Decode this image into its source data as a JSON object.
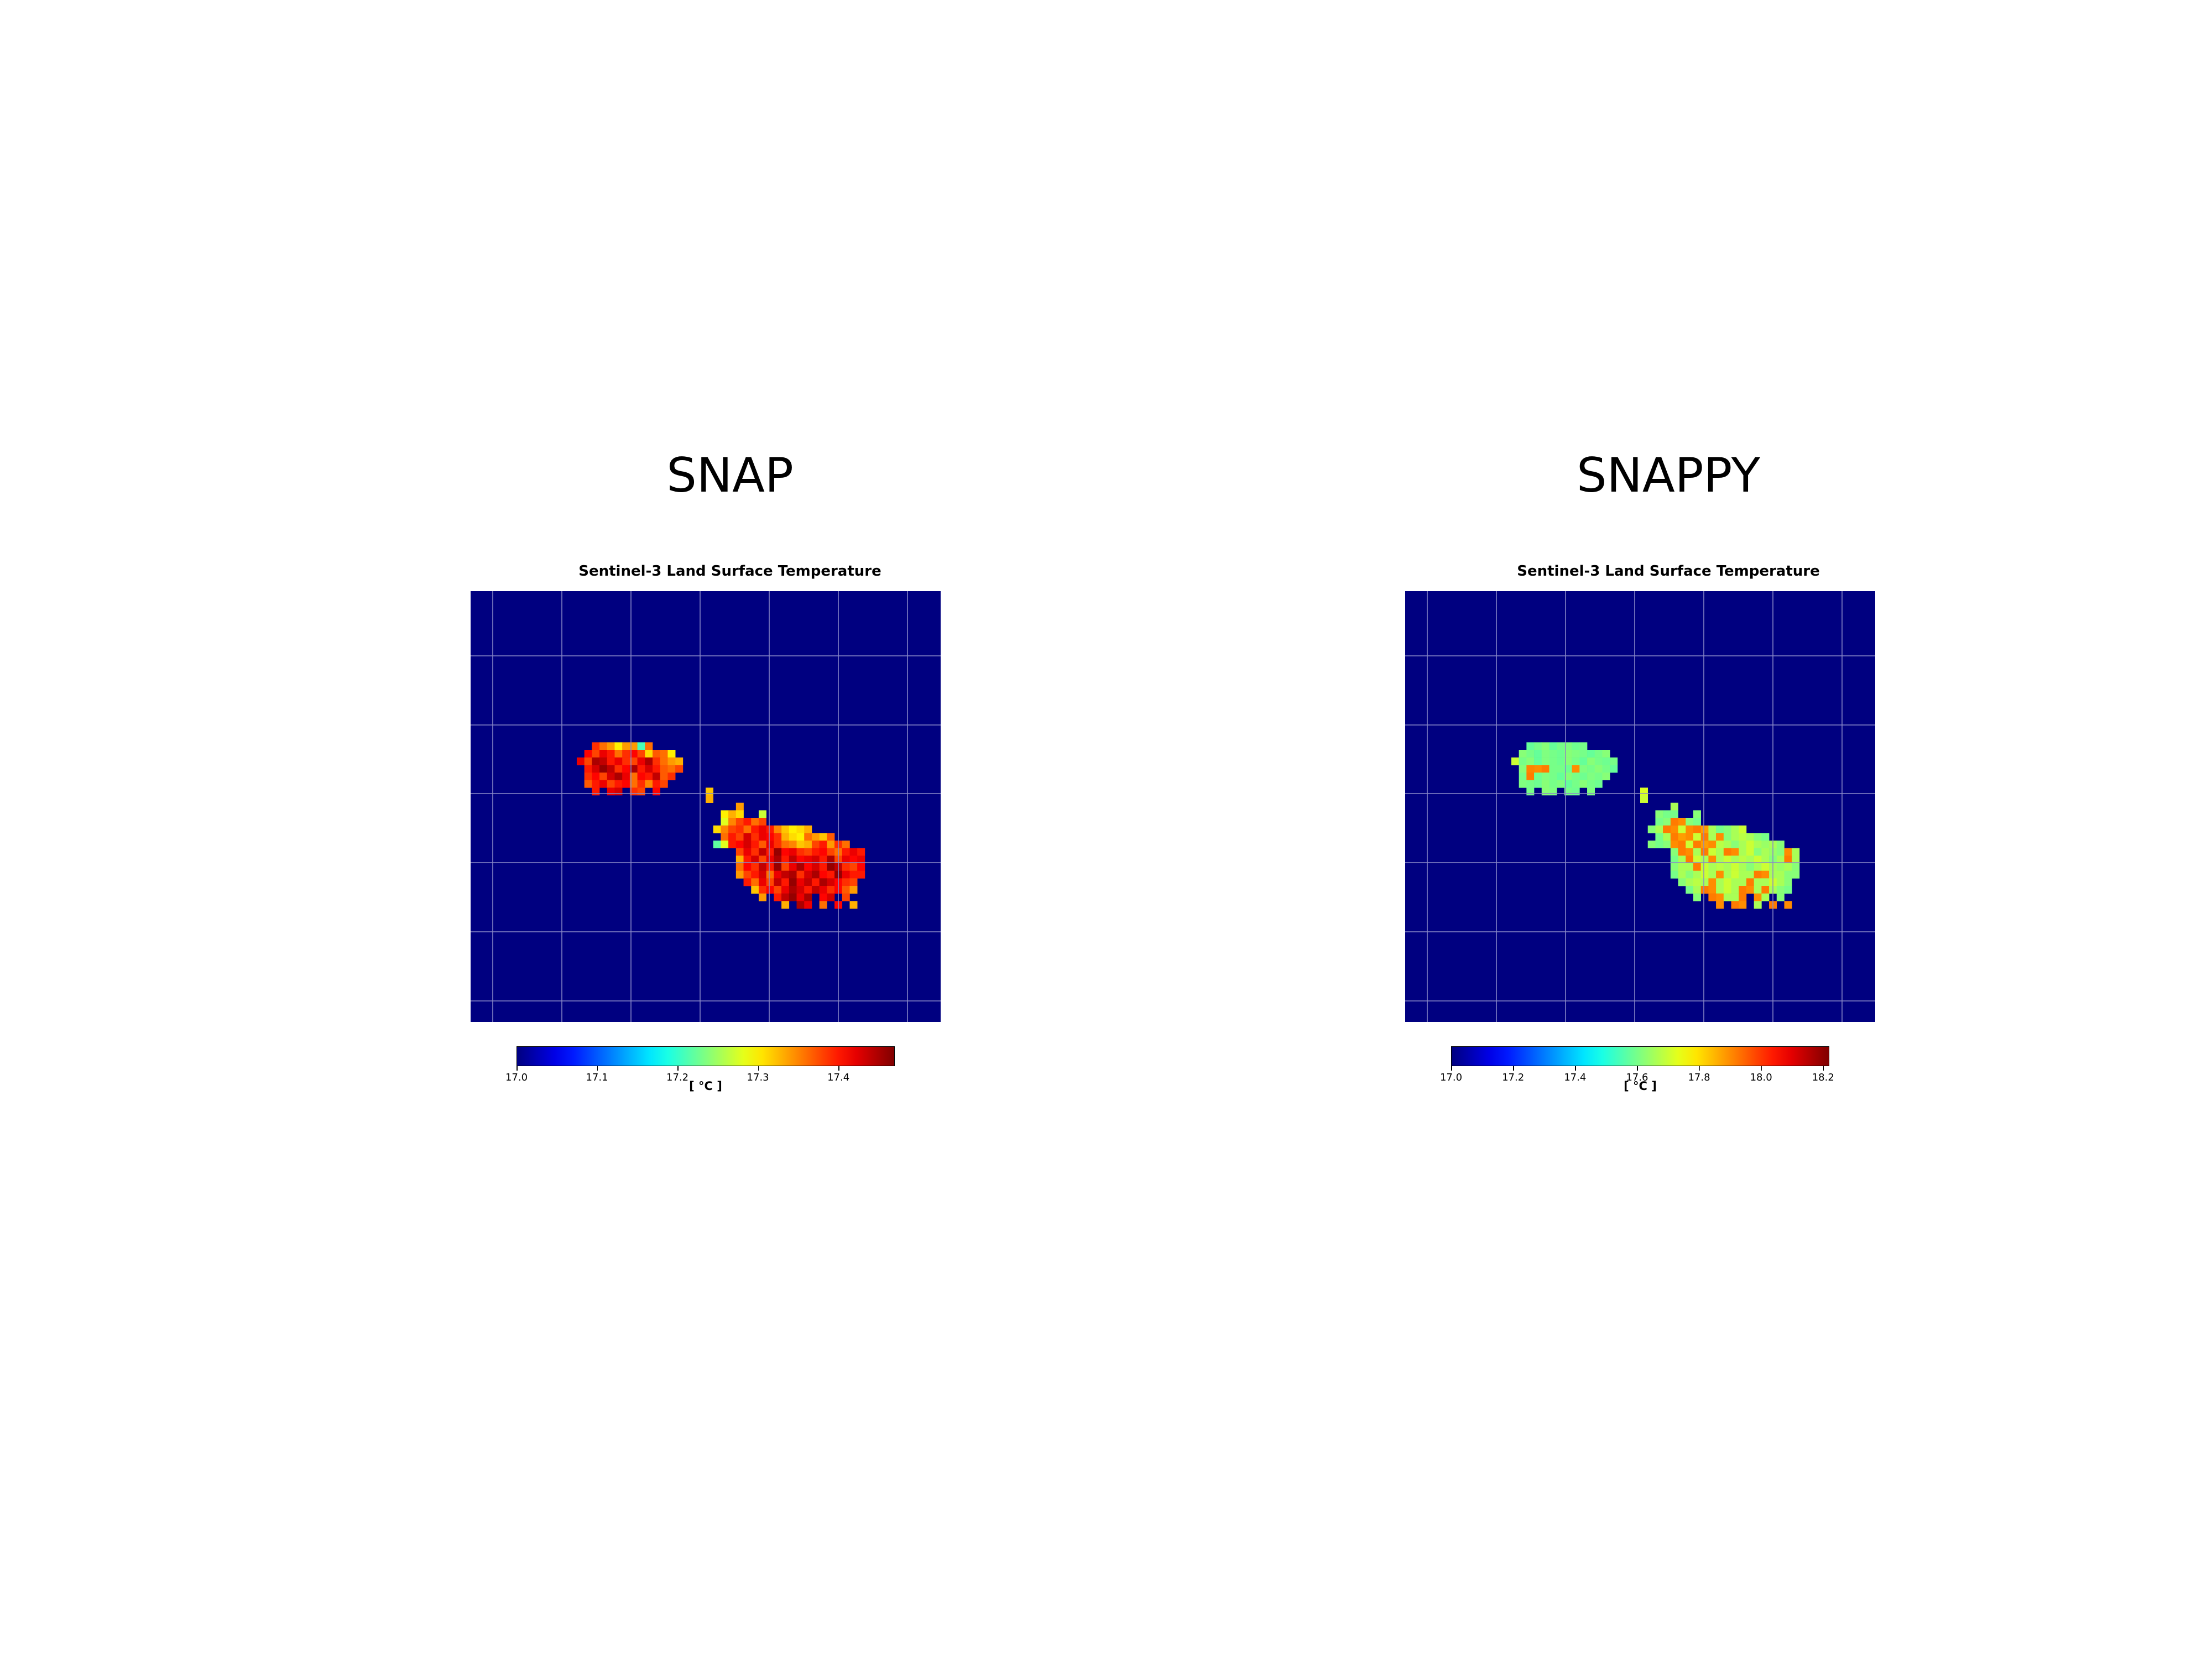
{
  "colors": {
    "ocean": "#000080",
    "grid": "#8a8ac8",
    "colormap": "jet"
  },
  "panels": [
    {
      "heading": "SNAP"
    },
    {
      "heading": "SNAPPY"
    }
  ],
  "chart_data": [
    {
      "type": "heatmap",
      "title": "Sentinel-3 Land Surface Temperature",
      "grid": true,
      "vmin": 17.0,
      "vmax": 17.47,
      "colorbar": {
        "ticks": [
          17.0,
          17.1,
          17.2,
          17.3,
          17.4
        ],
        "tick_labels": [
          "17.0",
          "17.1",
          "17.2",
          "17.3",
          "17.4"
        ],
        "label": "[ °C ]",
        "orientation": "horizontal"
      },
      "values_by_row": [
        {
          "row": 20,
          "col_start": 16,
          "values": [
            17.39,
            17.36,
            17.34,
            17.3,
            17.34,
            17.34,
            17.21,
            17.36
          ]
        },
        {
          "row": 21,
          "col_start": 15,
          "values": [
            17.41,
            17.38,
            17.42,
            17.4,
            17.36,
            17.39,
            17.41,
            17.38,
            17.31,
            17.37,
            17.36,
            17.3
          ]
        },
        {
          "row": 22,
          "col_start": 14,
          "values": [
            17.42,
            17.38,
            17.45,
            17.44,
            17.4,
            17.42,
            17.39,
            17.38,
            17.42,
            17.45,
            17.39,
            17.36,
            17.34,
            17.33
          ]
        },
        {
          "row": 23,
          "col_start": 15,
          "values": [
            17.4,
            17.43,
            17.46,
            17.44,
            17.39,
            17.41,
            17.45,
            17.4,
            17.43,
            17.4,
            17.37,
            17.36,
            17.38
          ]
        },
        {
          "row": 24,
          "col_start": 15,
          "values": [
            17.39,
            17.41,
            17.38,
            17.43,
            17.45,
            17.42,
            17.36,
            17.41,
            17.4,
            17.44,
            17.37,
            17.39
          ]
        },
        {
          "row": 25,
          "col_start": 15,
          "values": [
            17.37,
            17.4,
            17.42,
            17.38,
            17.4,
            17.41,
            17.36,
            17.39,
            17.35,
            17.4,
            17.38
          ]
        },
        {
          "row": 26,
          "col_start": 16,
          "values": [
            17.4,
            null,
            17.42,
            17.43,
            null,
            17.39,
            17.38,
            null,
            17.41
          ],
          "extra": [
            {
              "col": 31,
              "value": 17.32
            }
          ]
        },
        {
          "row": 27,
          "col_start": 31,
          "values": [
            17.33
          ]
        },
        {
          "row": 28,
          "col_start": 35,
          "values": [
            17.34
          ]
        },
        {
          "row": 29,
          "col_start": 33,
          "values": [
            17.3,
            17.33,
            17.31
          ],
          "extra": [
            {
              "col": 38,
              "value": 17.27
            }
          ]
        },
        {
          "row": 30,
          "col_start": 33,
          "values": [
            17.28,
            17.35,
            17.38,
            17.4,
            17.36,
            17.38
          ]
        },
        {
          "row": 31,
          "col_start": 32,
          "values": [
            17.31,
            17.35,
            17.38,
            17.39,
            17.36,
            17.4,
            17.42,
            17.4,
            17.35,
            17.32,
            17.3,
            17.31,
            17.33
          ]
        },
        {
          "row": 32,
          "col_start": 33,
          "values": [
            17.36,
            17.4,
            17.38,
            17.43,
            17.39,
            17.42,
            17.41,
            17.39,
            17.33,
            17.31,
            17.3,
            17.36,
            17.34,
            17.32,
            17.37
          ]
        },
        {
          "row": 33,
          "col_start": 32,
          "values": [
            17.22,
            17.28,
            17.4,
            17.41,
            17.43,
            17.4,
            17.37,
            17.42,
            17.39,
            17.36,
            17.35,
            17.32,
            17.33,
            17.38,
            17.4,
            17.34,
            17.39,
            17.36
          ]
        },
        {
          "row": 34,
          "col_start": 35,
          "values": [
            17.38,
            17.42,
            17.39,
            17.44,
            17.4,
            17.46,
            17.41,
            17.42,
            17.39,
            17.38,
            17.4,
            17.41,
            17.38,
            17.36,
            17.4,
            17.42,
            17.4
          ]
        },
        {
          "row": 35,
          "col_start": 35,
          "values": [
            17.33,
            17.4,
            17.43,
            17.38,
            17.42,
            17.45,
            17.4,
            17.44,
            17.41,
            17.42,
            17.43,
            17.4,
            17.45,
            17.38,
            17.42,
            17.41,
            17.42
          ]
        },
        {
          "row": 36,
          "col_start": 35,
          "values": [
            17.36,
            17.41,
            17.39,
            17.44,
            17.4,
            17.46,
            17.38,
            17.42,
            17.45,
            17.41,
            17.43,
            17.4,
            17.46,
            17.44,
            17.39,
            17.38,
            17.41
          ]
        },
        {
          "row": 37,
          "col_start": 35,
          "values": [
            17.34,
            17.38,
            17.4,
            17.43,
            17.36,
            17.42,
            17.44,
            17.45,
            17.39,
            17.43,
            17.45,
            17.41,
            17.4,
            17.46,
            17.42,
            17.4,
            17.4
          ]
        },
        {
          "row": 38,
          "col_start": 36,
          "values": [
            17.4,
            17.36,
            17.42,
            17.38,
            17.44,
            17.4,
            17.46,
            17.42,
            17.44,
            17.4,
            17.45,
            17.43,
            17.41,
            17.39,
            17.38
          ]
        },
        {
          "row": 39,
          "col_start": 37,
          "values": [
            17.32,
            17.39,
            17.41,
            17.38,
            17.42,
            17.45,
            17.43,
            17.4,
            17.44,
            17.42,
            17.39,
            17.41,
            17.37,
            17.34
          ]
        },
        {
          "row": 40,
          "col_start": 38,
          "values": [
            17.34,
            null,
            17.4,
            17.44,
            17.46,
            17.42,
            17.45,
            null,
            17.41,
            17.43,
            null,
            17.38
          ]
        },
        {
          "row": 41,
          "col_start": 41,
          "values": [
            17.33,
            null,
            17.45,
            17.42,
            null,
            17.36,
            null,
            17.41,
            null,
            17.33
          ]
        }
      ],
      "grid_dims": {
        "cols": 62,
        "rows": 57
      }
    },
    {
      "type": "heatmap",
      "title": "Sentinel-3 Land Surface Temperature",
      "grid": true,
      "vmin": 17.0,
      "vmax": 18.22,
      "colorbar": {
        "ticks": [
          17.0,
          17.2,
          17.4,
          17.6,
          17.8,
          18.0,
          18.2
        ],
        "tick_labels": [
          "17.0",
          "17.2",
          "17.4",
          "17.6",
          "17.8",
          "18.0",
          "18.2"
        ],
        "label": "[ °C ]",
        "orientation": "horizontal"
      },
      "values_by_row": [
        {
          "row": 20,
          "col_start": 16,
          "values": [
            17.58,
            17.6,
            17.62,
            17.58,
            17.6,
            17.61,
            17.59,
            17.6
          ]
        },
        {
          "row": 21,
          "col_start": 15,
          "values": [
            17.62,
            17.6,
            17.58,
            17.61,
            17.6,
            17.59,
            17.62,
            17.61,
            17.6,
            17.58,
            17.6,
            17.62
          ]
        },
        {
          "row": 22,
          "col_start": 14,
          "values": [
            17.7,
            17.6,
            17.62,
            17.58,
            17.61,
            17.6,
            17.59,
            17.62,
            17.6,
            17.58,
            17.62,
            17.6,
            17.59,
            17.6
          ]
        },
        {
          "row": 23,
          "col_start": 15,
          "values": [
            17.62,
            17.91,
            17.9,
            17.92,
            17.6,
            17.6,
            17.59,
            17.9,
            17.61,
            17.6,
            17.62,
            17.6,
            17.58
          ]
        },
        {
          "row": 24,
          "col_start": 15,
          "values": [
            17.6,
            17.92,
            17.59,
            17.61,
            17.6,
            17.58,
            17.62,
            17.6,
            17.59,
            17.61,
            17.6,
            17.62
          ]
        },
        {
          "row": 25,
          "col_start": 15,
          "values": [
            17.61,
            17.6,
            17.59,
            17.62,
            17.6,
            17.61,
            17.58,
            17.6,
            17.62,
            17.6,
            17.59
          ]
        },
        {
          "row": 26,
          "col_start": 16,
          "values": [
            17.6,
            null,
            17.62,
            17.61,
            null,
            17.6,
            17.59,
            null,
            17.61
          ],
          "extra": [
            {
              "col": 31,
              "value": 17.72
            }
          ]
        },
        {
          "row": 27,
          "col_start": 31,
          "values": [
            17.7
          ]
        },
        {
          "row": 28,
          "col_start": 35,
          "values": [
            17.66
          ]
        },
        {
          "row": 29,
          "col_start": 33,
          "values": [
            17.62,
            17.6,
            17.6
          ],
          "extra": [
            {
              "col": 38,
              "value": 17.62
            }
          ]
        },
        {
          "row": 30,
          "col_start": 33,
          "values": [
            17.6,
            17.62,
            17.92,
            17.9,
            17.62,
            17.6
          ]
        },
        {
          "row": 31,
          "col_start": 32,
          "values": [
            17.62,
            17.66,
            17.92,
            17.9,
            17.7,
            17.9,
            17.92,
            17.88,
            17.66,
            17.6,
            17.62,
            17.66,
            17.7
          ]
        },
        {
          "row": 32,
          "col_start": 33,
          "values": [
            17.6,
            17.66,
            17.92,
            17.88,
            17.9,
            17.7,
            17.92,
            17.66,
            17.9,
            17.62,
            17.66,
            17.68,
            17.66,
            17.62,
            17.6
          ]
        },
        {
          "row": 33,
          "col_start": 32,
          "values": [
            17.62,
            17.6,
            17.62,
            17.9,
            17.92,
            17.7,
            17.92,
            17.88,
            17.9,
            17.68,
            17.66,
            17.62,
            17.66,
            17.7,
            17.66,
            17.64,
            17.66,
            17.62
          ]
        },
        {
          "row": 34,
          "col_start": 35,
          "values": [
            17.62,
            17.92,
            17.9,
            17.66,
            17.92,
            17.7,
            17.66,
            17.92,
            17.9,
            17.66,
            17.7,
            17.62,
            17.66,
            17.64,
            17.62,
            17.9,
            17.66
          ]
        },
        {
          "row": 35,
          "col_start": 35,
          "values": [
            17.6,
            17.66,
            17.92,
            17.7,
            17.66,
            17.9,
            17.66,
            17.7,
            17.66,
            17.68,
            17.66,
            17.7,
            17.66,
            17.62,
            17.66,
            17.92,
            17.66
          ]
        },
        {
          "row": 36,
          "col_start": 35,
          "values": [
            17.62,
            17.66,
            17.66,
            17.92,
            17.7,
            17.66,
            17.68,
            17.66,
            17.7,
            17.66,
            17.62,
            17.66,
            17.7,
            17.66,
            17.64,
            17.66,
            17.62
          ]
        },
        {
          "row": 37,
          "col_start": 35,
          "values": [
            17.6,
            17.66,
            17.62,
            17.66,
            17.7,
            17.66,
            17.9,
            17.66,
            17.7,
            17.66,
            17.66,
            17.92,
            17.9,
            17.66,
            17.66,
            17.62,
            17.62
          ]
        },
        {
          "row": 38,
          "col_start": 36,
          "values": [
            17.62,
            17.66,
            17.68,
            17.66,
            17.9,
            17.66,
            17.7,
            17.66,
            17.66,
            17.92,
            17.66,
            17.66,
            17.7,
            17.66,
            17.62
          ]
        },
        {
          "row": 39,
          "col_start": 37,
          "values": [
            17.6,
            17.66,
            17.92,
            17.9,
            17.66,
            17.7,
            17.66,
            17.92,
            17.9,
            17.66,
            17.92,
            17.66,
            17.62,
            17.6
          ]
        },
        {
          "row": 40,
          "col_start": 38,
          "values": [
            17.62,
            null,
            17.92,
            17.9,
            17.66,
            17.66,
            17.92,
            null,
            17.9,
            17.66,
            null,
            17.62
          ]
        },
        {
          "row": 41,
          "col_start": 41,
          "values": [
            17.9,
            null,
            17.92,
            17.9,
            null,
            17.66,
            null,
            17.92,
            null,
            17.9
          ]
        }
      ],
      "grid_dims": {
        "cols": 62,
        "rows": 57
      }
    }
  ]
}
